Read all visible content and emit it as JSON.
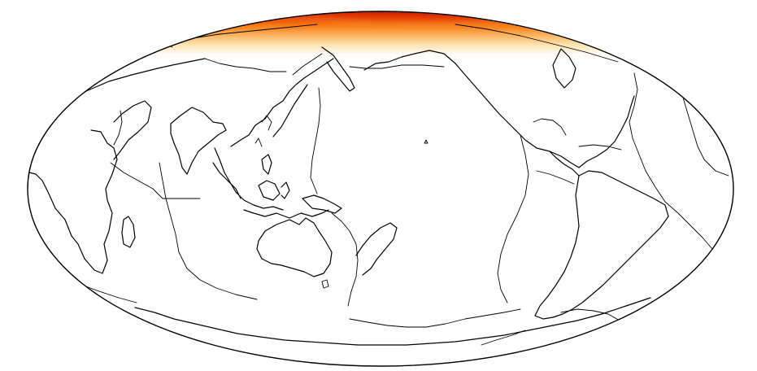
{
  "map": {
    "projection": "mollweide",
    "center_longitude": 180,
    "background": "#ffffff",
    "line_color": "#000000",
    "heat_band": {
      "location": "north-polar",
      "colors": [
        "#b01500",
        "#e53a00",
        "#f77a10",
        "#fbb560",
        "#fde2b0",
        "#fffaf0"
      ]
    },
    "layers": [
      "coastlines",
      "plate-boundaries",
      "heat-overlay"
    ]
  }
}
